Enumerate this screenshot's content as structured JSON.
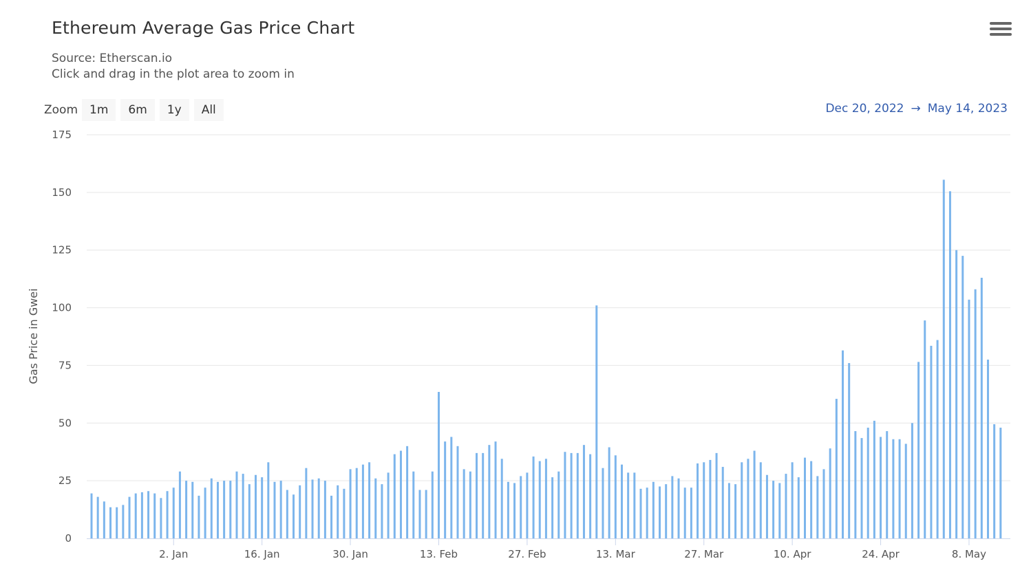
{
  "header": {
    "title": "Ethereum Average Gas Price Chart",
    "source": "Source: Etherscan.io",
    "hint": "Click and drag in the plot area to zoom in",
    "menu_icon": "hamburger-menu-icon"
  },
  "zoom": {
    "label": "Zoom",
    "buttons": [
      "1m",
      "6m",
      "1y",
      "All"
    ]
  },
  "range": {
    "from": "Dec 20, 2022",
    "arrow": "→",
    "to": "May 14, 2023"
  },
  "colors": {
    "bar": "#7cb5ec",
    "grid": "#e6e6e6",
    "range_text": "#335cad"
  },
  "chart_data": {
    "type": "bar",
    "title": "Ethereum Average Gas Price Chart",
    "ylabel": "Gas Price in Gwei",
    "xlabel": "",
    "ylim": [
      0,
      175
    ],
    "yticks": [
      0,
      25,
      50,
      75,
      100,
      125,
      150,
      175
    ],
    "grid": true,
    "start_date": "2022-12-20",
    "end_date": "2023-05-14",
    "xtick_labels": [
      {
        "date": "2023-01-02",
        "label": "2. Jan"
      },
      {
        "date": "2023-01-16",
        "label": "16. Jan"
      },
      {
        "date": "2023-01-30",
        "label": "30. Jan"
      },
      {
        "date": "2023-02-13",
        "label": "13. Feb"
      },
      {
        "date": "2023-02-27",
        "label": "27. Feb"
      },
      {
        "date": "2023-03-13",
        "label": "13. Mar"
      },
      {
        "date": "2023-03-27",
        "label": "27. Mar"
      },
      {
        "date": "2023-04-10",
        "label": "10. Apr"
      },
      {
        "date": "2023-04-24",
        "label": "24. Apr"
      },
      {
        "date": "2023-05-08",
        "label": "8. May"
      }
    ],
    "series": [
      {
        "values": [
          19.5,
          18,
          16,
          13.5,
          13.5,
          14.5,
          18,
          19.5,
          20,
          20.5,
          19.5,
          17.5,
          20.5,
          22,
          29,
          25,
          24.5,
          18.5,
          22,
          26,
          24.5,
          25,
          25,
          29,
          28,
          23.5,
          27.5,
          26.5,
          33,
          24.5,
          25,
          21,
          19,
          23,
          30.5,
          25.5,
          26,
          25,
          18.5,
          23,
          21.5,
          30,
          30.5,
          32,
          33,
          26,
          23.5,
          28.5,
          36.5,
          38,
          40,
          29,
          21,
          21,
          29,
          63.5,
          42,
          44,
          40,
          30,
          29,
          37,
          37,
          40.5,
          42,
          34.5,
          24.5,
          24,
          27,
          28.5,
          35.5,
          33.5,
          34.5,
          26.5,
          29,
          37.5,
          37,
          37,
          40.5,
          36.5,
          101,
          30.5,
          39.5,
          36,
          32,
          28.5,
          28.5,
          21.5,
          22,
          24.5,
          22.5,
          23.5,
          27,
          26,
          22,
          22,
          32.5,
          33,
          34,
          37,
          31,
          24,
          23.5,
          33,
          34.5,
          38,
          33,
          27.5,
          25,
          24,
          28,
          33,
          26.5,
          35,
          33.5,
          27,
          30,
          39,
          60.5,
          81.5,
          76,
          46.5,
          43.5,
          48,
          51,
          44,
          46.5,
          43,
          43,
          41,
          50,
          76.5,
          94.5,
          83.5,
          86,
          155.5,
          150.5,
          125,
          122.5,
          103.5,
          108,
          113,
          77.5,
          49.5,
          48
        ]
      }
    ]
  }
}
